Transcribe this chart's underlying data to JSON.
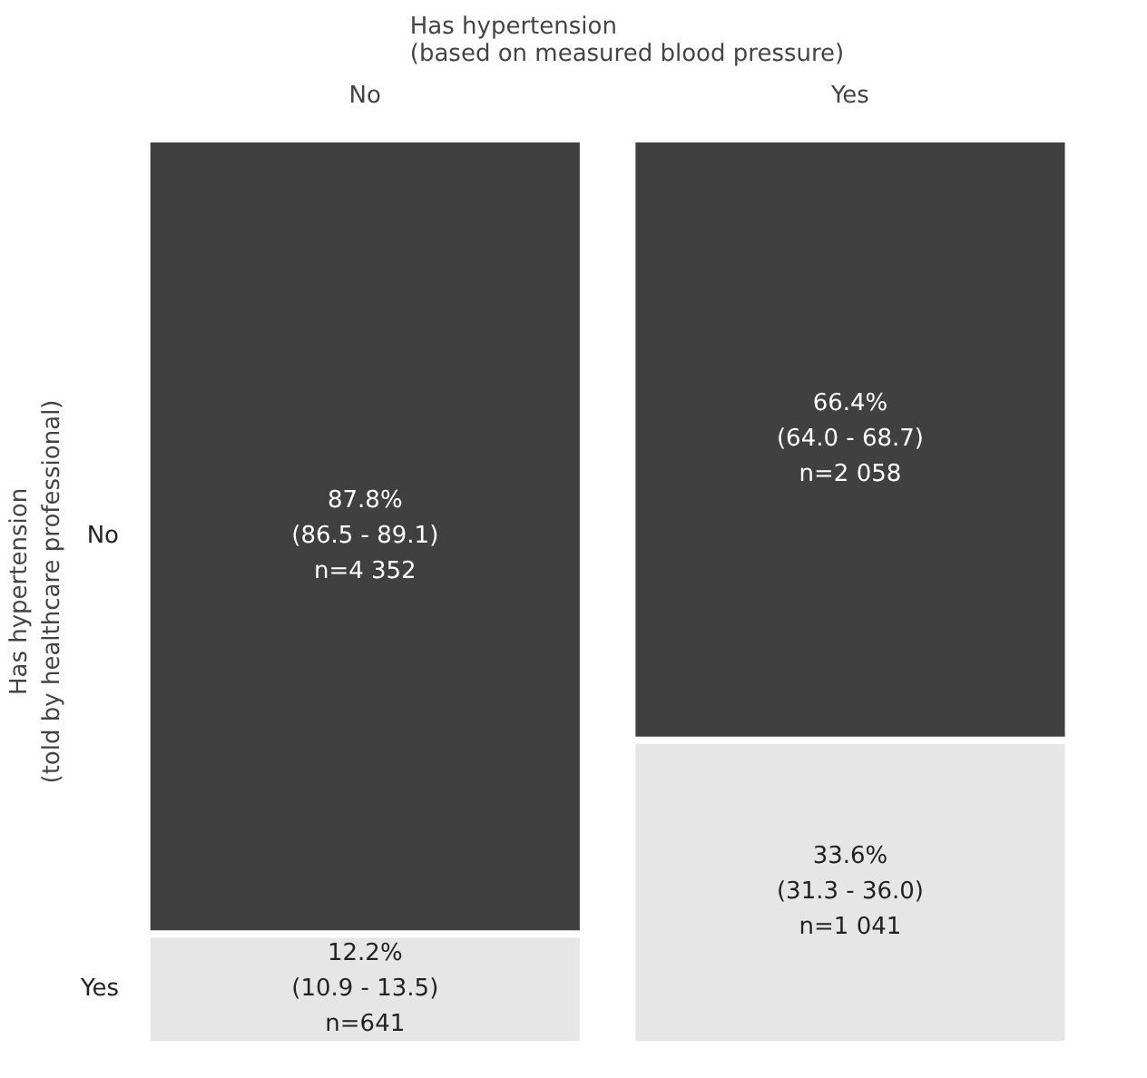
{
  "chart_data": {
    "type": "bar",
    "stacked": true,
    "title": "Has hypertension\n(based on measured blood pressure)",
    "ylabel": "Has hypertension\n(told by healthcare professional)",
    "categories": [
      "No",
      "Yes"
    ],
    "series": [
      {
        "name": "Yes",
        "color": "#e6e6e6",
        "values": [
          12.2,
          33.6
        ],
        "value_labels": [
          "12.2%\n(10.9 - 13.5)\nn=641",
          "33.6%\n(31.3 - 36.0)\nn=1 041"
        ]
      },
      {
        "name": "No",
        "color": "#404040",
        "values": [
          87.8,
          66.4
        ],
        "value_labels": [
          "87.8%\n(86.5 - 89.1)\nn=4 352",
          "66.4%\n(64.0 - 68.7)\nn=2 058"
        ]
      }
    ]
  }
}
